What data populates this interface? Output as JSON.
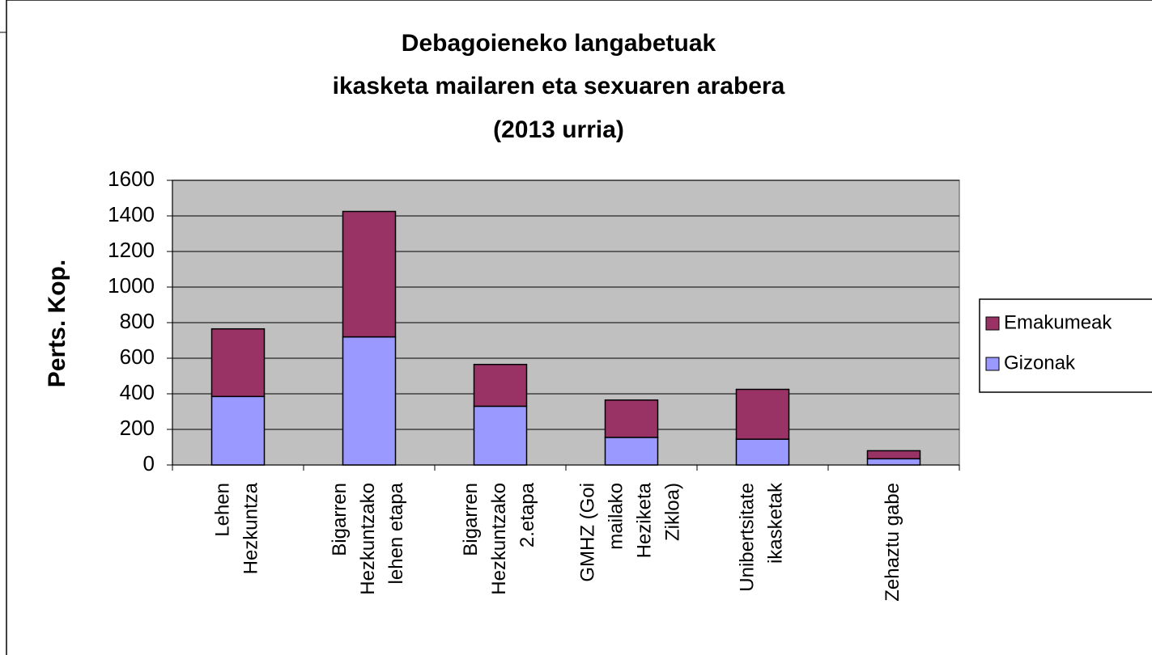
{
  "chart_data": {
    "type": "stacked_bar",
    "title": [
      "Debagoieneko langabetuak",
      "ikasketa mailaren eta sexuaren arabera",
      "(2013 urria)"
    ],
    "y_label": "Perts. Kop.",
    "categories": [
      "Lehen\nHezkuntza",
      "Bigarren\nHezkuntzako\nlehen etapa",
      "Bigarren\nHezkuntzako\n2.etapa",
      "GMHZ (Goi\nmailako\nHeziketa\nZikloa)",
      "Unibertsitate\nikasketak",
      "Zehaztu gabe"
    ],
    "series": [
      {
        "name": "Gizonak",
        "color": "#9999ff",
        "values": [
          385,
          720,
          330,
          155,
          145,
          35
        ]
      },
      {
        "name": "Emakumeak",
        "color": "#993366",
        "values": [
          380,
          705,
          235,
          210,
          280,
          45
        ]
      }
    ],
    "ylim": [
      0,
      1600
    ],
    "yticks": [
      0,
      200,
      400,
      600,
      800,
      1000,
      1200,
      1400,
      1600
    ],
    "grid": true,
    "legend": "right"
  }
}
